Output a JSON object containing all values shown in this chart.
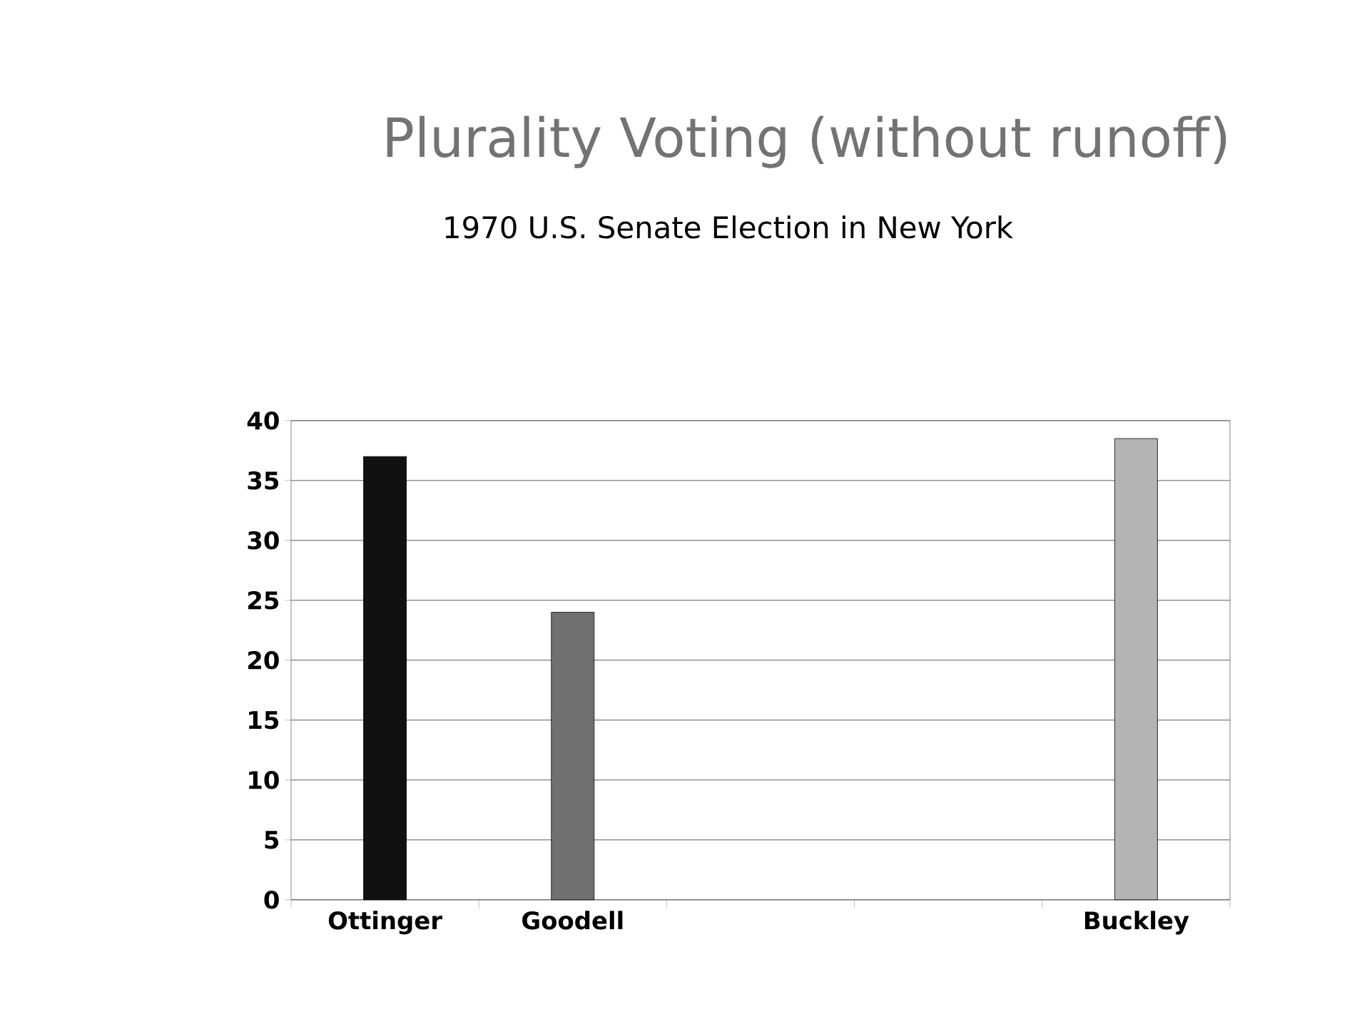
{
  "chart_data": {
    "type": "bar",
    "title": "Plurality Voting (without runoff)",
    "subtitle": "1970 U.S. Senate Election in New York",
    "categories": [
      "Ottinger",
      "Goodell",
      null,
      null,
      "Buckley"
    ],
    "values": [
      37,
      24,
      null,
      null,
      38.5
    ],
    "colors": [
      "#111111",
      "#707070",
      null,
      null,
      "#b4b4b4"
    ],
    "ylim": [
      0,
      40
    ],
    "yticks": [
      0,
      5,
      10,
      15,
      20,
      25,
      30,
      35,
      40
    ],
    "grid": "y"
  }
}
